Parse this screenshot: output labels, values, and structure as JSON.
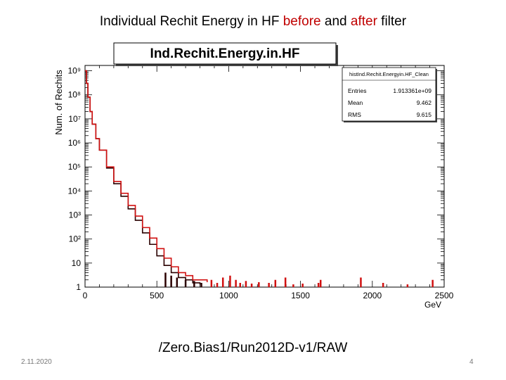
{
  "slide": {
    "title_parts": [
      {
        "text": "Individual Rechit Energy in HF ",
        "highlight": false
      },
      {
        "text": "before",
        "highlight": true
      },
      {
        "text": " and ",
        "highlight": false
      },
      {
        "text": "after",
        "highlight": true
      },
      {
        "text": " filter",
        "highlight": false
      }
    ],
    "dataset": "/Zero.Bias1/Run2012D-v1/RAW",
    "date": "2.11.2020",
    "page": "4"
  },
  "colors": {
    "before": "#d01010",
    "after": "#2a0000",
    "title_highlight": "#c00000"
  },
  "chart_data": {
    "type": "line",
    "title": "Ind.Rechit.Energy.in.HF",
    "xlabel": "GeV",
    "ylabel": "Num. of Rechits",
    "xlim": [
      0,
      2500
    ],
    "ylim": [
      1,
      1000000000
    ],
    "log_y": true,
    "x_ticks": [
      "0",
      "500",
      "1000",
      "1500",
      "2000",
      "2500"
    ],
    "y_ticks": [
      "1",
      "10",
      "10²",
      "10³",
      "10⁴",
      "10⁵",
      "10⁶",
      "10⁷",
      "10⁸",
      "10⁹"
    ],
    "stats_box": {
      "name": "histInd.Rechit.Energyin.HF_Clean",
      "rows": [
        {
          "label": "Entries",
          "value": "1.913361e+09"
        },
        {
          "label": "Mean",
          "value": "9.462"
        },
        {
          "label": "RMS",
          "value": "9.615"
        }
      ]
    },
    "series": [
      {
        "key": "before",
        "points": [
          [
            0,
            1000000000
          ],
          [
            10,
            300000000
          ],
          [
            20,
            80000000
          ],
          [
            35,
            20000000
          ],
          [
            50,
            6000000
          ],
          [
            75,
            1500000
          ],
          [
            100,
            500000
          ],
          [
            150,
            100000
          ],
          [
            200,
            25000
          ],
          [
            250,
            8000
          ],
          [
            300,
            2500
          ],
          [
            350,
            900
          ],
          [
            400,
            300
          ],
          [
            450,
            110
          ],
          [
            500,
            40
          ],
          [
            550,
            16
          ],
          [
            600,
            7
          ],
          [
            650,
            4
          ],
          [
            700,
            3
          ],
          [
            750,
            2
          ],
          [
            800,
            2
          ],
          [
            850,
            1.6
          ]
        ],
        "spikes": [
          [
            880,
            2
          ],
          [
            920,
            1.5
          ],
          [
            960,
            2.5
          ],
          [
            1010,
            3
          ],
          [
            1050,
            2
          ],
          [
            1080,
            1.5
          ],
          [
            1120,
            1.8
          ],
          [
            1160,
            1.4
          ],
          [
            1210,
            1.6
          ],
          [
            1280,
            1.5
          ],
          [
            1325,
            2
          ],
          [
            1395,
            2.5
          ],
          [
            1450,
            1.3
          ],
          [
            1515,
            1.4
          ],
          [
            1625,
            1.5
          ],
          [
            1640,
            2
          ],
          [
            1920,
            2.5
          ],
          [
            2075,
            1.5
          ],
          [
            2245,
            1.3
          ],
          [
            2420,
            2
          ]
        ]
      },
      {
        "key": "after",
        "points": [
          [
            0,
            1000000000
          ],
          [
            10,
            300000000
          ],
          [
            20,
            80000000
          ],
          [
            35,
            20000000
          ],
          [
            50,
            6000000
          ],
          [
            75,
            1500000
          ],
          [
            100,
            500000
          ],
          [
            150,
            90000
          ],
          [
            200,
            20000
          ],
          [
            250,
            6000
          ],
          [
            300,
            1800
          ],
          [
            350,
            600
          ],
          [
            400,
            180
          ],
          [
            450,
            60
          ],
          [
            500,
            20
          ],
          [
            550,
            8
          ],
          [
            600,
            4
          ],
          [
            650,
            2.5
          ],
          [
            700,
            2
          ],
          [
            750,
            1.5
          ],
          [
            800,
            1.3
          ]
        ],
        "spikes": [
          [
            560,
            4
          ],
          [
            600,
            3
          ],
          [
            640,
            2.5
          ],
          [
            700,
            2
          ],
          [
            760,
            1.8
          ],
          [
            810,
            1.5
          ]
        ]
      }
    ]
  }
}
